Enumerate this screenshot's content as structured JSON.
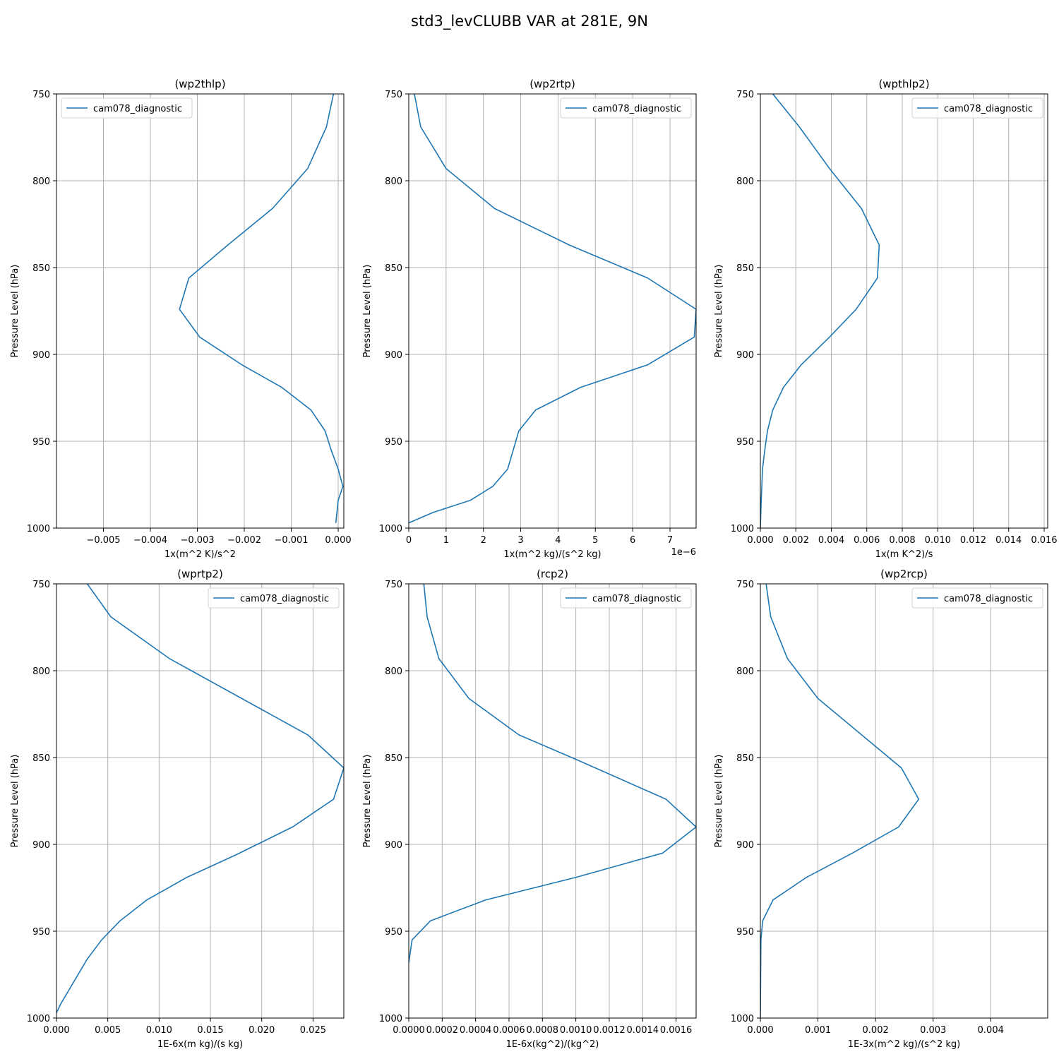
{
  "figure": {
    "title": "std3_levCLUBB VAR at 281E, 9N",
    "line_color": "#1f77b4"
  },
  "chart_data": [
    {
      "type": "line",
      "title": "(wp2thlp)",
      "xlabel": "1x(m^2 K)/s^2",
      "ylabel": "Pressure Level (hPa)",
      "offset_text": "",
      "xlim": [
        -0.006,
        0.00012
      ],
      "ylim": [
        1000,
        750
      ],
      "yticks": [
        750,
        800,
        850,
        900,
        950,
        1000
      ],
      "ytick_labels": [
        "750",
        "800",
        "850",
        "900",
        "950",
        "1000"
      ],
      "xticks": [
        -0.005,
        -0.004,
        -0.003,
        -0.002,
        -0.001,
        0.0
      ],
      "xtick_labels": [
        "−0.005",
        "−0.004",
        "−0.003",
        "−0.002",
        "−0.001",
        "0.000"
      ],
      "grid": true,
      "legend_position": "upper left",
      "series": [
        {
          "name": "cam078_diagnostic",
          "x": [
            -0.0001,
            -0.00025,
            -0.00065,
            -0.0014,
            -0.00235,
            -0.00318,
            -0.00338,
            -0.00295,
            -0.00205,
            -0.0012,
            -0.00058,
            -0.00028,
            -0.00015,
            -0.0,
            0.0001,
            0.0,
            -5e-05
          ],
          "y": [
            750,
            769,
            793,
            816,
            837,
            856,
            874,
            890,
            906,
            919,
            932,
            944,
            955,
            966,
            976,
            984,
            997
          ]
        }
      ]
    },
    {
      "type": "line",
      "title": "(wp2rtp)",
      "xlabel": "1x(m^2 kg)/(s^2 kg)",
      "ylabel": "Pressure Level (hPa)",
      "offset_text": "1e−6",
      "xlim": [
        0,
        7.7
      ],
      "ylim": [
        1000,
        750
      ],
      "yticks": [
        750,
        800,
        850,
        900,
        950,
        1000
      ],
      "ytick_labels": [
        "750",
        "800",
        "850",
        "900",
        "950",
        "1000"
      ],
      "xticks": [
        0,
        1,
        2,
        3,
        4,
        5,
        6,
        7
      ],
      "xtick_labels": [
        "0",
        "1",
        "2",
        "3",
        "4",
        "5",
        "6",
        "7"
      ],
      "grid": true,
      "legend_position": "upper right",
      "series": [
        {
          "name": "cam078_diagnostic",
          "x": [
            0.15,
            0.32,
            1.0,
            2.3,
            4.3,
            6.4,
            7.7,
            7.65,
            6.4,
            4.6,
            3.4,
            2.95,
            2.8,
            2.65,
            2.25,
            1.65,
            0.65,
            0.0
          ],
          "y": [
            750,
            769,
            793,
            816,
            837,
            856,
            874,
            890,
            906,
            919,
            932,
            944,
            955,
            966,
            976,
            984,
            991,
            997
          ]
        }
      ]
    },
    {
      "type": "line",
      "title": "(wpthlp2)",
      "xlabel": "1x(m K^2)/s",
      "ylabel": "Pressure Level (hPa)",
      "offset_text": "",
      "xlim": [
        0,
        0.0162
      ],
      "ylim": [
        1000,
        750
      ],
      "yticks": [
        750,
        800,
        850,
        900,
        950,
        1000
      ],
      "ytick_labels": [
        "750",
        "800",
        "850",
        "900",
        "950",
        "1000"
      ],
      "xticks": [
        0,
        0.002,
        0.004,
        0.006,
        0.008,
        0.01,
        0.012,
        0.014,
        0.016
      ],
      "xtick_labels": [
        "0.000",
        "0.002",
        "0.004",
        "0.006",
        "0.008",
        "0.010",
        "0.012",
        "0.014",
        "0.016"
      ],
      "grid": true,
      "legend_position": "upper right",
      "series": [
        {
          "name": "cam078_diagnostic",
          "x": [
            0.0007,
            0.0022,
            0.0039,
            0.0057,
            0.0067,
            0.0066,
            0.0054,
            0.0039,
            0.0023,
            0.0013,
            0.0007,
            0.0004,
            0.00025,
            0.00012,
            5e-05,
            0.0
          ],
          "y": [
            750,
            769,
            793,
            816,
            837,
            856,
            874,
            890,
            906,
            919,
            932,
            944,
            955,
            966,
            984,
            1000
          ]
        }
      ]
    },
    {
      "type": "line",
      "title": "(wprtp2)",
      "xlabel": "1E-6x(m kg)/(s kg)",
      "ylabel": "Pressure Level (hPa)",
      "offset_text": "",
      "xlim": [
        0,
        0.028
      ],
      "ylim": [
        1000,
        750
      ],
      "yticks": [
        750,
        800,
        850,
        900,
        950,
        1000
      ],
      "ytick_labels": [
        "750",
        "800",
        "850",
        "900",
        "950",
        "1000"
      ],
      "xticks": [
        0,
        0.005,
        0.01,
        0.015,
        0.02,
        0.025
      ],
      "xtick_labels": [
        "0.000",
        "0.005",
        "0.010",
        "0.015",
        "0.020",
        "0.025"
      ],
      "grid": true,
      "legend_position": "upper right",
      "series": [
        {
          "name": "cam078_diagnostic",
          "x": [
            0.003,
            0.0053,
            0.011,
            0.0245,
            0.028,
            0.027,
            0.023,
            0.0175,
            0.0127,
            0.0088,
            0.0062,
            0.0044,
            0.003,
            0.002,
            0.0012,
            0.0004,
            0.0
          ],
          "y": [
            750,
            769,
            793,
            837,
            856,
            874,
            890,
            906,
            919,
            932,
            944,
            955,
            966,
            976,
            984,
            992,
            997
          ]
        }
      ]
    },
    {
      "type": "line",
      "title": "(rcp2)",
      "xlabel": "1E-6x(kg^2)/(kg^2)",
      "ylabel": "Pressure Level (hPa)",
      "offset_text": "",
      "xlim": [
        0,
        0.00172
      ],
      "ylim": [
        1000,
        750
      ],
      "yticks": [
        750,
        800,
        850,
        900,
        950,
        1000
      ],
      "ytick_labels": [
        "750",
        "800",
        "850",
        "900",
        "950",
        "1000"
      ],
      "xticks": [
        0,
        0.0002,
        0.0004,
        0.0006,
        0.0008,
        0.001,
        0.0012,
        0.0014,
        0.0016
      ],
      "xtick_labels": [
        "0.0000",
        "0.0002",
        "0.0004",
        "0.0006",
        "0.0008",
        "0.0010",
        "0.0012",
        "0.0014",
        "0.0016"
      ],
      "grid": true,
      "legend_position": "upper right",
      "series": [
        {
          "name": "cam078_diagnostic",
          "x": [
            9e-05,
            0.00011,
            0.00018,
            0.00036,
            0.00066,
            0.001,
            0.00154,
            0.00172,
            0.00152,
            0.001,
            0.00046,
            0.00013,
            2e-05,
            0.0
          ],
          "y": [
            750,
            769,
            793,
            816,
            837,
            851,
            874,
            890,
            905,
            919,
            932,
            944,
            955,
            968
          ]
        }
      ]
    },
    {
      "type": "line",
      "title": "(wp2rcp)",
      "xlabel": "1E-3x(m^2 kg)/(s^2 kg)",
      "ylabel": "Pressure Level (hPa)",
      "offset_text": "",
      "xlim": [
        0,
        0.00499
      ],
      "ylim": [
        1000,
        750
      ],
      "yticks": [
        750,
        800,
        850,
        900,
        950,
        1000
      ],
      "ytick_labels": [
        "750",
        "800",
        "850",
        "900",
        "950",
        "1000"
      ],
      "xticks": [
        0,
        0.001,
        0.002,
        0.003,
        0.004
      ],
      "xtick_labels": [
        "0.000",
        "0.001",
        "0.002",
        "0.003",
        "0.004"
      ],
      "grid": true,
      "legend_position": "upper right",
      "series": [
        {
          "name": "cam078_diagnostic",
          "x": [
            0.0001,
            0.00018,
            0.00047,
            0.001,
            0.00245,
            0.00275,
            0.0024,
            0.0016,
            0.0008,
            0.00022,
            4e-05,
            1e-05,
            0.0
          ],
          "y": [
            750,
            769,
            793,
            816,
            856,
            874,
            890,
            905,
            919,
            932,
            944,
            955,
            1000
          ]
        }
      ]
    }
  ]
}
